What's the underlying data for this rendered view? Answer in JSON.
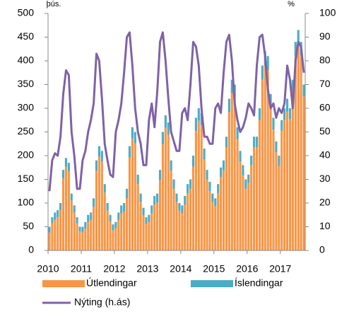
{
  "chart_data": {
    "type": "bar-line",
    "y_label": "þús.",
    "y2_label": "%",
    "categories": [
      "2010",
      null,
      null,
      null,
      null,
      null,
      null,
      null,
      null,
      null,
      null,
      null,
      "2011",
      null,
      null,
      null,
      null,
      null,
      null,
      null,
      null,
      null,
      null,
      null,
      "2012",
      null,
      null,
      null,
      null,
      null,
      null,
      null,
      null,
      null,
      null,
      null,
      "2013",
      null,
      null,
      null,
      null,
      null,
      null,
      null,
      null,
      null,
      null,
      null,
      "2014",
      null,
      null,
      null,
      null,
      null,
      null,
      null,
      null,
      null,
      null,
      null,
      "2015",
      null,
      null,
      null,
      null,
      null,
      null,
      null,
      null,
      null,
      null,
      null,
      "2016",
      null,
      null,
      null,
      null,
      null,
      null,
      null,
      null,
      null,
      null,
      null,
      "2017",
      null,
      null,
      null,
      null,
      null,
      null,
      null,
      null
    ],
    "series": [
      {
        "name": "Útlendingar",
        "color": "#f79646",
        "kind": "bar",
        "values": [
          38,
          57,
          65,
          70,
          85,
          152,
          177,
          167,
          105,
          80,
          57,
          40,
          38,
          46,
          60,
          64,
          92,
          168,
          198,
          188,
          122,
          84,
          61,
          42,
          47,
          64,
          78,
          82,
          110,
          196,
          236,
          226,
          140,
          102,
          74,
          56,
          60,
          78,
          97,
          101,
          148,
          224,
          259,
          244,
          168,
          130,
          102,
          84,
          78,
          97,
          121,
          130,
          177,
          252,
          274,
          264,
          192,
          149,
          125,
          102,
          93,
          121,
          155,
          169,
          217,
          292,
          332,
          322,
          235,
          187,
          158,
          130,
          142,
          180,
          218,
          218,
          275,
          360,
          390,
          380,
          303,
          255,
          207,
          178,
          253,
          275,
          293,
          277,
          335,
          410,
          437,
          412,
          325
        ]
      },
      {
        "name": "Íslendingar",
        "color": "#4bacc6",
        "kind": "bar",
        "values": [
          12,
          13,
          15,
          15,
          15,
          18,
          18,
          18,
          15,
          15,
          13,
          10,
          12,
          14,
          15,
          16,
          18,
          22,
          22,
          22,
          18,
          16,
          14,
          13,
          13,
          16,
          17,
          18,
          20,
          24,
          24,
          24,
          20,
          18,
          16,
          14,
          15,
          17,
          18,
          19,
          22,
          26,
          26,
          26,
          22,
          20,
          18,
          16,
          17,
          18,
          19,
          20,
          23,
          28,
          26,
          26,
          23,
          21,
          20,
          18,
          17,
          19,
          20,
          21,
          23,
          28,
          28,
          28,
          25,
          23,
          22,
          20,
          18,
          20,
          22,
          22,
          25,
          30,
          30,
          30,
          27,
          25,
          23,
          22,
          22,
          25,
          27,
          23,
          25,
          30,
          28,
          28,
          25
        ]
      },
      {
        "name": "Nýting  (h.ás)",
        "color": "#7f62a8",
        "kind": "line",
        "axis": "y2",
        "values": [
          25,
          38,
          41,
          40,
          48,
          66,
          76,
          74,
          50,
          40,
          26,
          26,
          38,
          42,
          50,
          55,
          62,
          83,
          80,
          64,
          45,
          38,
          32,
          31,
          50,
          55,
          62,
          75,
          90,
          92,
          78,
          60,
          50,
          45,
          36,
          36,
          55,
          62,
          52,
          67,
          88,
          92,
          80,
          64,
          50,
          46,
          42,
          42,
          58,
          60,
          55,
          70,
          88,
          86,
          78,
          60,
          48,
          48,
          45,
          45,
          60,
          62,
          58,
          75,
          88,
          91,
          80,
          62,
          55,
          50,
          52,
          56,
          62,
          60,
          57,
          78,
          90,
          91,
          82,
          68,
          60,
          62,
          56,
          60,
          58,
          62,
          78,
          72,
          60,
          80,
          88,
          86,
          75
        ]
      }
    ],
    "ylim": [
      0,
      500
    ],
    "yticks": [
      0,
      50,
      100,
      150,
      200,
      250,
      300,
      350,
      400,
      450,
      500
    ],
    "y2lim": [
      0,
      100
    ],
    "y2ticks": [
      0,
      10,
      20,
      30,
      40,
      50,
      60,
      70,
      80,
      90,
      100
    ],
    "grid": false
  }
}
